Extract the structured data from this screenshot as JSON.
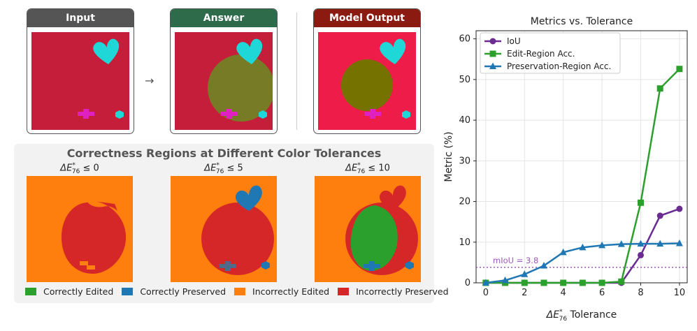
{
  "panels": {
    "input_label": "Input",
    "answer_label": "Answer",
    "output_label": "Model Output",
    "arrow": "→",
    "colors": {
      "input_header": "#555555",
      "answer_header": "#2d6b4a",
      "output_header": "#8b1a10"
    }
  },
  "regions": {
    "title": "Correctness Regions at Different Color Tolerances",
    "tolerances": [
      "ΔE*76 ≤ 0",
      "ΔE*76 ≤ 5",
      "ΔE*76 ≤ 10"
    ],
    "legend": [
      {
        "label": "Correctly Edited",
        "color": "#2ca02c"
      },
      {
        "label": "Correctly Preserved",
        "color": "#1f77b4"
      },
      {
        "label": "Incorrectly Edited",
        "color": "#ff7f0e"
      },
      {
        "label": "Incorrectly Preserved",
        "color": "#d62728"
      }
    ]
  },
  "chart_data": {
    "type": "line",
    "title": "Metrics vs. Tolerance",
    "xlabel": "ΔE*76 Tolerance",
    "ylabel": "Metric (%)",
    "xlim": [
      -0.5,
      10.4
    ],
    "ylim": [
      0,
      62
    ],
    "xticks": [
      0,
      2,
      4,
      6,
      8,
      10
    ],
    "yticks": [
      0,
      10,
      20,
      30,
      40,
      50,
      60
    ],
    "grid": true,
    "legend_position": "top-left",
    "x": [
      0,
      1,
      2,
      3,
      4,
      5,
      6,
      7,
      8,
      9,
      10
    ],
    "series": [
      {
        "name": "IoU",
        "color": "#6a2c91",
        "marker": "circle",
        "values": [
          0,
          0,
          0,
          0,
          0,
          0,
          0,
          0,
          6.8,
          16.5,
          18.2
        ]
      },
      {
        "name": "Edit-Region Acc.",
        "color": "#2ca02c",
        "marker": "square",
        "values": [
          0,
          0,
          0,
          0,
          0,
          0,
          0,
          0.3,
          19.7,
          47.8,
          52.6
        ]
      },
      {
        "name": "Preservation-Region Acc.",
        "color": "#1f77b4",
        "marker": "triangle",
        "values": [
          0,
          0.6,
          2.1,
          4.2,
          7.5,
          8.7,
          9.2,
          9.5,
          9.6,
          9.6,
          9.7
        ]
      }
    ],
    "reference_line": {
      "label": "mIoU = 3.8",
      "value": 3.8,
      "color": "#9b59b6"
    }
  }
}
